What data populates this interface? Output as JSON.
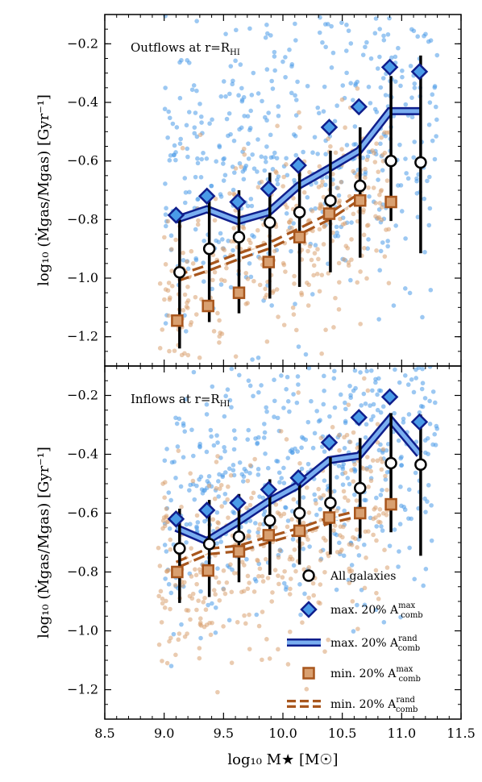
{
  "chart_data": {
    "type": "scatter",
    "xlabel": "log₁₀ M★ [M☉]",
    "xlim": [
      8.5,
      11.5
    ],
    "xticks": [
      "8.5",
      "9.0",
      "9.5",
      "10.0",
      "10.5",
      "11.0",
      "11.5"
    ],
    "colors": {
      "blue": "#4a9be8",
      "orange": "#d9a070",
      "navy": "#0f1e8c",
      "brown": "#a8561d"
    },
    "legend": {
      "position": "lower-right",
      "entries": [
        {
          "text": "All galaxies",
          "base": "All galaxies",
          "sup": "",
          "sub": ""
        },
        {
          "text": "max. 20% A_comb^max",
          "base": "max. 20% A",
          "sup": "max",
          "sub": "comb"
        },
        {
          "text": "max. 20% A_comb^rand",
          "base": "max. 20% A",
          "sup": "rand",
          "sub": "comb"
        },
        {
          "text": "min. 20% A_comb^max",
          "base": "min. 20% A",
          "sup": "max",
          "sub": "comb"
        },
        {
          "text": "min. 20% A_comb^rand",
          "base": "min. 20% A",
          "sup": "rand",
          "sub": "comb"
        }
      ]
    },
    "panels": [
      {
        "title_base": "Outflows at r=R",
        "title_sub": "HI",
        "ylabel": "log₁₀ (Ṁgas/Mgas) [Gyr⁻¹]",
        "ylim": [
          -1.3,
          -0.1
        ],
        "yticks": [
          "−0.2",
          "−0.4",
          "−0.6",
          "−0.8",
          "−1.0",
          "−1.2"
        ],
        "ytick_values": [
          -0.2,
          -0.4,
          -0.6,
          -0.8,
          -1.0,
          -1.2
        ],
        "all_galaxies": {
          "x": [
            9.13,
            9.38,
            9.63,
            9.89,
            10.14,
            10.4,
            10.65,
            10.91,
            11.16
          ],
          "median": [
            -0.98,
            -0.9,
            -0.86,
            -0.81,
            -0.775,
            -0.735,
            -0.685,
            -0.6,
            -0.605
          ],
          "low": [
            -1.24,
            -1.15,
            -1.12,
            -1.07,
            -1.03,
            -0.98,
            -0.93,
            -0.805,
            -0.915
          ],
          "high": [
            -0.8,
            -0.71,
            -0.7,
            -0.64,
            -0.6,
            -0.565,
            -0.485,
            -0.31,
            -0.24
          ]
        },
        "max_acomb_max": {
          "x": [
            9.1,
            9.36,
            9.62,
            9.88,
            10.13,
            10.39,
            10.64,
            10.9,
            11.15
          ],
          "y": [
            -0.785,
            -0.72,
            -0.74,
            -0.695,
            -0.615,
            -0.485,
            -0.415,
            -0.28,
            -0.295
          ]
        },
        "max_acomb_rand": {
          "x": [
            9.1,
            9.36,
            9.62,
            9.88,
            10.13,
            10.39,
            10.64,
            10.9,
            11.15
          ],
          "y": [
            -0.8,
            -0.765,
            -0.805,
            -0.775,
            -0.685,
            -0.625,
            -0.565,
            -0.43,
            -0.43
          ]
        },
        "min_acomb_max": {
          "x": [
            9.11,
            9.37,
            9.63,
            9.88,
            10.14,
            10.39,
            10.65,
            10.91
          ],
          "y": [
            -1.145,
            -1.095,
            -1.05,
            -0.945,
            -0.86,
            -0.78,
            -0.735,
            -0.74
          ]
        },
        "min_acomb_rand": {
          "x": [
            9.11,
            9.37,
            9.63,
            9.88,
            10.14,
            10.39,
            10.65
          ],
          "y": [
            -1.0,
            -0.965,
            -0.925,
            -0.89,
            -0.84,
            -0.79,
            -0.72
          ]
        }
      },
      {
        "title_base": "Inflows at r=R",
        "title_sub": "HI",
        "ylabel": "log₁₀ (Ṁgas/Mgas) [Gyr⁻¹]",
        "ylim": [
          -1.3,
          -0.1
        ],
        "yticks": [
          "−0.2",
          "−0.4",
          "−0.6",
          "−0.8",
          "−1.0",
          "−1.2"
        ],
        "ytick_values": [
          -0.2,
          -0.4,
          -0.6,
          -0.8,
          -1.0,
          -1.2
        ],
        "all_galaxies": {
          "x": [
            9.13,
            9.38,
            9.63,
            9.89,
            10.14,
            10.4,
            10.65,
            10.91,
            11.16
          ],
          "median": [
            -0.72,
            -0.705,
            -0.68,
            -0.625,
            -0.6,
            -0.565,
            -0.515,
            -0.43,
            -0.435
          ],
          "low": [
            -0.905,
            -0.885,
            -0.835,
            -0.81,
            -0.775,
            -0.74,
            -0.685,
            -0.665,
            -0.745
          ],
          "high": [
            -0.585,
            -0.555,
            -0.535,
            -0.485,
            -0.455,
            -0.41,
            -0.345,
            -0.26,
            -0.265
          ]
        },
        "max_acomb_max": {
          "x": [
            9.1,
            9.36,
            9.62,
            9.88,
            10.13,
            10.39,
            10.64,
            10.9,
            11.15
          ],
          "y": [
            -0.62,
            -0.59,
            -0.565,
            -0.52,
            -0.48,
            -0.36,
            -0.275,
            -0.205,
            -0.29
          ]
        },
        "max_acomb_rand": {
          "x": [
            9.1,
            9.36,
            9.62,
            9.88,
            10.13,
            10.39,
            10.64,
            10.9,
            11.15
          ],
          "y": [
            -0.65,
            -0.695,
            -0.63,
            -0.56,
            -0.505,
            -0.42,
            -0.405,
            -0.28,
            -0.4
          ]
        },
        "min_acomb_max": {
          "x": [
            9.11,
            9.37,
            9.63,
            9.88,
            10.14,
            10.39,
            10.65,
            10.91
          ],
          "y": [
            -0.8,
            -0.795,
            -0.73,
            -0.675,
            -0.66,
            -0.615,
            -0.6,
            -0.57
          ]
        },
        "min_acomb_rand": {
          "x": [
            9.11,
            9.37,
            9.63,
            9.88,
            10.14,
            10.39,
            10.65
          ],
          "y": [
            -0.775,
            -0.73,
            -0.72,
            -0.69,
            -0.66,
            -0.625,
            -0.6
          ]
        }
      }
    ]
  }
}
